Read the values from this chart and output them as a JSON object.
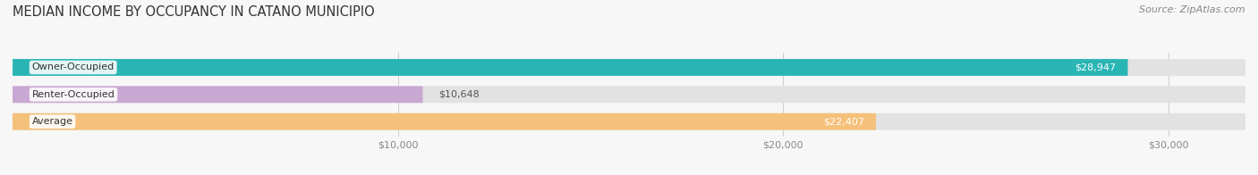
{
  "title": "MEDIAN INCOME BY OCCUPANCY IN CATANO MUNICIPIO",
  "source": "Source: ZipAtlas.com",
  "categories": [
    "Owner-Occupied",
    "Renter-Occupied",
    "Average"
  ],
  "values": [
    28947,
    10648,
    22407
  ],
  "bar_colors": [
    "#2ab5b5",
    "#c9a8d4",
    "#f5c07a"
  ],
  "value_labels": [
    "$28,947",
    "$10,648",
    "$22,407"
  ],
  "value_inside": [
    true,
    false,
    true
  ],
  "xlim": [
    0,
    32000
  ],
  "xticks": [
    10000,
    20000,
    30000
  ],
  "xtick_labels": [
    "$10,000",
    "$20,000",
    "$30,000"
  ],
  "background_color": "#f7f7f7",
  "bar_background_color": "#e2e2e2",
  "title_fontsize": 10.5,
  "source_fontsize": 8,
  "bar_height": 0.62,
  "figsize": [
    14.06,
    1.96
  ],
  "dpi": 100
}
